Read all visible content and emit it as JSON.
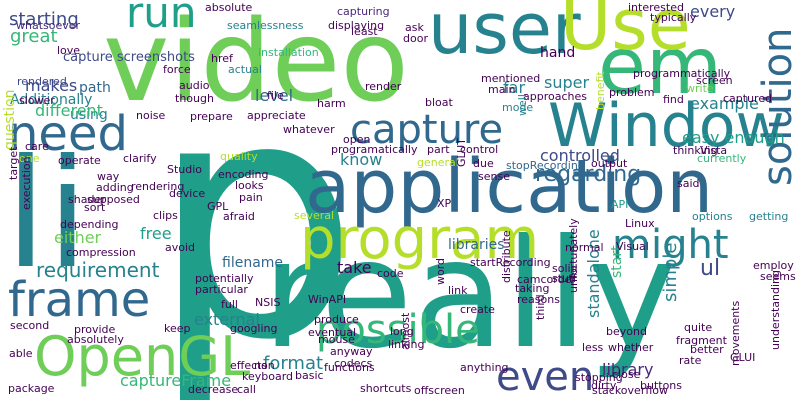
{
  "palette": [
    "#440154",
    "#482878",
    "#3e4a89",
    "#31688e",
    "#26828e",
    "#1f9e89",
    "#35b779",
    "#6ece58",
    "#b5de2b"
  ],
  "words": [
    {
      "text": "p",
      "color": "#1f9e89"
    },
    {
      "text": "video",
      "color": "#6ece58"
    },
    {
      "text": "really",
      "color": "#1f9e89"
    },
    {
      "text": "li",
      "color": "#26828e"
    },
    {
      "text": "application",
      "color": "#31688e"
    },
    {
      "text": "em",
      "color": "#35b779"
    },
    {
      "text": "user",
      "color": "#26828e"
    },
    {
      "text": "Use",
      "color": "#b5de2b"
    },
    {
      "text": "Window",
      "color": "#26828e"
    },
    {
      "text": "program",
      "color": "#b5de2b"
    },
    {
      "text": "need",
      "color": "#31688e"
    },
    {
      "text": "OpenGL",
      "color": "#6ece58"
    },
    {
      "text": "frame",
      "color": "#31688e"
    },
    {
      "text": "capture",
      "color": "#31688e"
    },
    {
      "text": "might",
      "color": "#26828e"
    },
    {
      "text": "possible",
      "color": "#35b779"
    },
    {
      "text": "even",
      "color": "#3e4a89"
    },
    {
      "text": "run",
      "color": "#1f9e89"
    },
    {
      "text": "solution",
      "color": "#31688e"
    },
    {
      "text": "requirement",
      "color": "#26828e"
    },
    {
      "text": "regarding",
      "color": "#31688e"
    },
    {
      "text": "controlled",
      "color": "#3e4a89"
    },
    {
      "text": "standalone",
      "color": "#26828e"
    },
    {
      "text": "library",
      "color": "#482878"
    },
    {
      "text": "libraries",
      "color": "#31688e"
    },
    {
      "text": "captureFrame",
      "color": "#35b779"
    },
    {
      "text": "format",
      "color": "#26828e"
    },
    {
      "text": "external",
      "color": "#26828e"
    },
    {
      "text": "filename",
      "color": "#31688e"
    },
    {
      "text": "take",
      "color": "#440154"
    },
    {
      "text": "either",
      "color": "#6ece58"
    },
    {
      "text": "free",
      "color": "#1f9e89"
    },
    {
      "text": "know",
      "color": "#26828e"
    },
    {
      "text": "start",
      "color": "#35b779"
    },
    {
      "text": "simple",
      "color": "#26828e"
    },
    {
      "text": "ul",
      "color": "#3e4a89"
    },
    {
      "text": "easy enough",
      "color": "#1f9e89"
    },
    {
      "text": "example",
      "color": "#26828e"
    },
    {
      "text": "far",
      "color": "#26828e"
    },
    {
      "text": "super",
      "color": "#26828e"
    },
    {
      "text": "hand",
      "color": "#440154"
    },
    {
      "text": "level",
      "color": "#31688e"
    },
    {
      "text": "every",
      "color": "#3e4a89"
    },
    {
      "text": "starting",
      "color": "#3e4a89"
    },
    {
      "text": "great",
      "color": "#35b779"
    },
    {
      "text": "makes",
      "color": "#3e4a89"
    },
    {
      "text": "path",
      "color": "#31688e"
    },
    {
      "text": "Additionally",
      "color": "#26828e"
    },
    {
      "text": "using",
      "color": "#26828e"
    },
    {
      "text": "different",
      "color": "#35b779"
    },
    {
      "text": "question",
      "color": "#b5de2b"
    },
    {
      "text": "capture screenshots",
      "color": "#3e4a89"
    },
    {
      "text": "absolute",
      "color": "#440154"
    },
    {
      "text": "capturing",
      "color": "#482878"
    },
    {
      "text": "displaying",
      "color": "#440154"
    },
    {
      "text": "seamlessness",
      "color": "#26828e"
    },
    {
      "text": "whatsoever",
      "color": "#482878"
    },
    {
      "text": "love",
      "color": "#440154"
    },
    {
      "text": "installation",
      "color": "#35b779"
    },
    {
      "text": "least",
      "color": "#440154"
    },
    {
      "text": "ask",
      "color": "#440154"
    },
    {
      "text": "door",
      "color": "#440154"
    },
    {
      "text": "interested",
      "color": "#440154"
    },
    {
      "text": "typically",
      "color": "#440154"
    },
    {
      "text": "programmatically",
      "color": "#440154"
    },
    {
      "text": "mentioned",
      "color": "#440154"
    },
    {
      "text": "main",
      "color": "#440154"
    },
    {
      "text": "approaches",
      "color": "#440154"
    },
    {
      "text": "benefit",
      "color": "#b5de2b"
    },
    {
      "text": "rendered",
      "color": "#3e4a89"
    },
    {
      "text": "force",
      "color": "#440154"
    },
    {
      "text": "slower",
      "color": "#440154"
    },
    {
      "text": "href",
      "color": "#440154"
    },
    {
      "text": "actual",
      "color": "#26828e"
    },
    {
      "text": "audio",
      "color": "#440154"
    },
    {
      "text": "though",
      "color": "#440154"
    },
    {
      "text": "file",
      "color": "#440154"
    },
    {
      "text": "render",
      "color": "#440154"
    },
    {
      "text": "bloat",
      "color": "#440154"
    },
    {
      "text": "harm",
      "color": "#440154"
    },
    {
      "text": "noise",
      "color": "#440154"
    },
    {
      "text": "prepare",
      "color": "#440154"
    },
    {
      "text": "appreciate",
      "color": "#440154"
    },
    {
      "text": "whatever",
      "color": "#440154"
    },
    {
      "text": "open",
      "color": "#440154"
    },
    {
      "text": "programatically",
      "color": "#440154"
    },
    {
      "text": "part",
      "color": "#440154"
    },
    {
      "text": "control",
      "color": "#440154"
    },
    {
      "text": "mode",
      "color": "#26828e"
    },
    {
      "text": "well",
      "color": "#26828e"
    },
    {
      "text": "write",
      "color": "#6ece58"
    },
    {
      "text": "problem",
      "color": "#440154"
    },
    {
      "text": "find",
      "color": "#440154"
    },
    {
      "text": "captured",
      "color": "#440154"
    },
    {
      "text": "screen",
      "color": "#440154"
    },
    {
      "text": "thinking",
      "color": "#440154"
    },
    {
      "text": "Vista",
      "color": "#440154"
    },
    {
      "text": "currently",
      "color": "#35b779"
    },
    {
      "text": "stopRecording",
      "color": "#31688e"
    },
    {
      "text": "output",
      "color": "#440154"
    },
    {
      "text": "due",
      "color": "#440154"
    },
    {
      "text": "general",
      "color": "#b5de2b"
    },
    {
      "text": "sense",
      "color": "#440154"
    },
    {
      "text": "GLUT",
      "color": "#440154"
    },
    {
      "text": "XP",
      "color": "#440154"
    },
    {
      "text": "API",
      "color": "#1f9e89"
    },
    {
      "text": "Linux",
      "color": "#440154"
    },
    {
      "text": "options",
      "color": "#26828e"
    },
    {
      "text": "getting",
      "color": "#26828e"
    },
    {
      "text": "said",
      "color": "#440154"
    },
    {
      "text": "employ",
      "color": "#440154"
    },
    {
      "text": "seems",
      "color": "#440154"
    },
    {
      "text": "care",
      "color": "#440154"
    },
    {
      "text": "one",
      "color": "#b5de2b"
    },
    {
      "text": "operate",
      "color": "#440154"
    },
    {
      "text": "clarify",
      "color": "#440154"
    },
    {
      "text": "way",
      "color": "#440154"
    },
    {
      "text": "Studio",
      "color": "#440154"
    },
    {
      "text": "adding",
      "color": "#440154"
    },
    {
      "text": "rendering",
      "color": "#440154"
    },
    {
      "text": "quality",
      "color": "#b5de2b"
    },
    {
      "text": "encoding",
      "color": "#440154"
    },
    {
      "text": "looks",
      "color": "#440154"
    },
    {
      "text": "pain",
      "color": "#440154"
    },
    {
      "text": "GPL",
      "color": "#440154"
    },
    {
      "text": "target",
      "color": "#440154"
    },
    {
      "text": "device",
      "color": "#440154"
    },
    {
      "text": "supposed",
      "color": "#440154"
    },
    {
      "text": "shader",
      "color": "#440154"
    },
    {
      "text": "sort",
      "color": "#440154"
    },
    {
      "text": "execution",
      "color": "#440154"
    },
    {
      "text": "clips",
      "color": "#440154"
    },
    {
      "text": "afraid",
      "color": "#440154"
    },
    {
      "text": "several",
      "color": "#b5de2b"
    },
    {
      "text": "depending",
      "color": "#440154"
    },
    {
      "text": "avoid",
      "color": "#440154"
    },
    {
      "text": "compression",
      "color": "#440154"
    },
    {
      "text": "code",
      "color": "#440154"
    },
    {
      "text": "camcorder",
      "color": "#440154"
    },
    {
      "text": "distribute",
      "color": "#440154"
    },
    {
      "text": "startRecording",
      "color": "#440154"
    },
    {
      "text": "taking",
      "color": "#440154"
    },
    {
      "text": "reasons",
      "color": "#440154"
    },
    {
      "text": "normal",
      "color": "#440154"
    },
    {
      "text": "solid",
      "color": "#440154"
    },
    {
      "text": "stuff",
      "color": "#440154"
    },
    {
      "text": "Visual",
      "color": "#440154"
    },
    {
      "text": "word",
      "color": "#440154"
    },
    {
      "text": "potentially",
      "color": "#440154"
    },
    {
      "text": "particular",
      "color": "#440154"
    },
    {
      "text": "NSIS",
      "color": "#440154"
    },
    {
      "text": "full",
      "color": "#440154"
    },
    {
      "text": "WinAPI",
      "color": "#440154"
    },
    {
      "text": "produce",
      "color": "#440154"
    },
    {
      "text": "link",
      "color": "#440154"
    },
    {
      "text": "create",
      "color": "#440154"
    },
    {
      "text": "unfortunately",
      "color": "#440154"
    },
    {
      "text": "second",
      "color": "#440154"
    },
    {
      "text": "keep",
      "color": "#440154"
    },
    {
      "text": "googling",
      "color": "#440154"
    },
    {
      "text": "eventual",
      "color": "#440154"
    },
    {
      "text": "long",
      "color": "#440154"
    },
    {
      "text": "third",
      "color": "#440154"
    },
    {
      "text": "beyond",
      "color": "#440154"
    },
    {
      "text": "fragment",
      "color": "#440154"
    },
    {
      "text": "provide",
      "color": "#440154"
    },
    {
      "text": "absolutely",
      "color": "#440154"
    },
    {
      "text": "effects",
      "color": "#440154"
    },
    {
      "text": "non",
      "color": "#440154"
    },
    {
      "text": "mouse",
      "color": "#440154"
    },
    {
      "text": "functions",
      "color": "#440154"
    },
    {
      "text": "linking",
      "color": "#440154"
    },
    {
      "text": "almost",
      "color": "#440154"
    },
    {
      "text": "less",
      "color": "#440154"
    },
    {
      "text": "whether",
      "color": "#440154"
    },
    {
      "text": "better",
      "color": "#440154"
    },
    {
      "text": "GLUI",
      "color": "#440154"
    },
    {
      "text": "movements",
      "color": "#440154"
    },
    {
      "text": "understanding",
      "color": "#440154"
    },
    {
      "text": "rate",
      "color": "#440154"
    },
    {
      "text": "able",
      "color": "#440154"
    },
    {
      "text": "keyboard",
      "color": "#440154"
    },
    {
      "text": "basic",
      "color": "#440154"
    },
    {
      "text": "anyway",
      "color": "#440154"
    },
    {
      "text": "codecs",
      "color": "#440154"
    },
    {
      "text": "anything",
      "color": "#440154"
    },
    {
      "text": "stopping",
      "color": "#440154"
    },
    {
      "text": "close",
      "color": "#440154"
    },
    {
      "text": "dirty",
      "color": "#440154"
    },
    {
      "text": "buttons",
      "color": "#440154"
    },
    {
      "text": "package",
      "color": "#440154"
    },
    {
      "text": "decrease",
      "color": "#440154"
    },
    {
      "text": "call",
      "color": "#440154"
    },
    {
      "text": "shortcuts",
      "color": "#440154"
    },
    {
      "text": "offscreen",
      "color": "#440154"
    },
    {
      "text": "stackoverflow",
      "color": "#440154"
    },
    {
      "text": "quite",
      "color": "#440154"
    }
  ]
}
